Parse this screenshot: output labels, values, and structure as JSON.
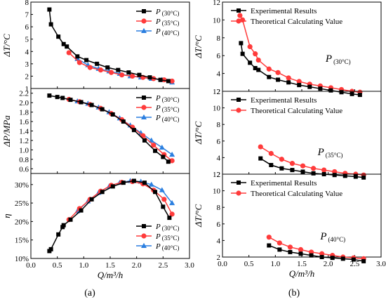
{
  "panel_labels": [
    "(a)",
    "(b)"
  ],
  "chart_data": [
    {
      "id": "a_dT",
      "type": "line",
      "ylabel": "ΔT/°C",
      "xlim": [
        0,
        3
      ],
      "ylim": [
        1,
        8
      ],
      "yticks": [
        "1",
        "2",
        "3",
        "4",
        "5",
        "6",
        "7",
        "8"
      ],
      "xticks": [],
      "legend": "top-right",
      "series": [
        {
          "name": "P",
          "sub": "(30°C)",
          "color": "#000000",
          "marker": "square",
          "x": [
            0.35,
            0.38,
            0.52,
            0.62,
            0.68,
            0.88,
            1.05,
            1.25,
            1.45,
            1.65,
            1.85,
            2.05,
            2.25,
            2.45,
            2.6
          ],
          "y": [
            7.4,
            6.2,
            5.2,
            4.6,
            4.4,
            3.6,
            3.3,
            3.0,
            2.7,
            2.5,
            2.3,
            2.1,
            1.9,
            1.7,
            1.6
          ]
        },
        {
          "name": "P",
          "sub": "(35°C)",
          "color": "#ff3b3b",
          "marker": "circle",
          "x": [
            0.72,
            0.92,
            1.12,
            1.32,
            1.52,
            1.72,
            1.92,
            2.12,
            2.32,
            2.52,
            2.67
          ],
          "y": [
            3.9,
            3.1,
            2.7,
            2.5,
            2.3,
            2.1,
            2.0,
            1.9,
            1.8,
            1.7,
            1.6
          ]
        },
        {
          "name": "P",
          "sub": "(40°C)",
          "color": "#2b7fe0",
          "marker": "triangle",
          "x": [
            0.88,
            1.08,
            1.28,
            1.48,
            1.68,
            1.88,
            2.08,
            2.28,
            2.48,
            2.67
          ],
          "y": [
            3.4,
            2.9,
            2.6,
            2.4,
            2.2,
            2.0,
            1.9,
            1.8,
            1.7,
            1.5
          ]
        }
      ]
    },
    {
      "id": "a_dP",
      "type": "line",
      "ylabel": "ΔP/MPa",
      "xlim": [
        0,
        3
      ],
      "ylim": [
        0.5,
        2.3
      ],
      "yticks": [
        "0.6",
        "0.8",
        "1.0",
        "1.2",
        "1.4",
        "1.6",
        "1.8",
        "2.0",
        "2.2"
      ],
      "xticks": [],
      "legend": "top-right",
      "series": [
        {
          "name": "P",
          "sub": "(30°C)",
          "color": "#000000",
          "marker": "square",
          "x": [
            0.35,
            0.5,
            0.6,
            0.75,
            0.95,
            1.15,
            1.35,
            1.55,
            1.75,
            1.95,
            2.15,
            2.35,
            2.5,
            2.6
          ],
          "y": [
            2.15,
            2.12,
            2.1,
            2.06,
            2.01,
            1.95,
            1.86,
            1.75,
            1.6,
            1.42,
            1.2,
            0.98,
            0.85,
            0.75
          ]
        },
        {
          "name": "P",
          "sub": "(35°C)",
          "color": "#ff3b3b",
          "marker": "circle",
          "x": [
            0.72,
            0.92,
            1.12,
            1.32,
            1.52,
            1.72,
            1.92,
            2.12,
            2.32,
            2.52,
            2.67
          ],
          "y": [
            2.07,
            2.02,
            1.96,
            1.88,
            1.77,
            1.64,
            1.48,
            1.3,
            1.1,
            0.9,
            0.77
          ]
        },
        {
          "name": "P",
          "sub": "(40°C)",
          "color": "#2b7fe0",
          "marker": "triangle",
          "x": [
            0.88,
            1.08,
            1.28,
            1.48,
            1.68,
            1.88,
            2.08,
            2.28,
            2.48,
            2.67
          ],
          "y": [
            2.03,
            1.98,
            1.9,
            1.8,
            1.67,
            1.52,
            1.36,
            1.2,
            1.05,
            0.9
          ]
        }
      ]
    },
    {
      "id": "a_eta",
      "type": "line",
      "ylabel": "η",
      "xlim": [
        0,
        3
      ],
      "ylim": [
        10,
        33
      ],
      "yticks": [
        "10%",
        "15%",
        "20%",
        "25%",
        "30%"
      ],
      "ytick_values": [
        10,
        15,
        20,
        25,
        30
      ],
      "xticks": [
        "0.0",
        "0.5",
        "1.0",
        "1.5",
        "2.0",
        "2.5",
        "3.0"
      ],
      "xlabel": "Q/m³/h",
      "legend": "bottom-right",
      "series": [
        {
          "name": "P",
          "sub": "(30°C)",
          "color": "#000000",
          "marker": "square",
          "x": [
            0.35,
            0.38,
            0.52,
            0.6,
            0.62,
            0.75,
            0.95,
            1.15,
            1.35,
            1.55,
            1.75,
            1.95,
            2.15,
            2.35,
            2.5,
            2.62
          ],
          "y": [
            12,
            12.5,
            16.5,
            18.5,
            19,
            20.5,
            23,
            26,
            28,
            29.5,
            30.5,
            31,
            30.5,
            28,
            24,
            21
          ]
        },
        {
          "name": "P",
          "sub": "(35°C)",
          "color": "#ff3b3b",
          "marker": "circle",
          "x": [
            0.72,
            0.92,
            1.12,
            1.32,
            1.52,
            1.72,
            1.92,
            2.12,
            2.32,
            2.52,
            2.67
          ],
          "y": [
            20.5,
            23.5,
            26,
            28.2,
            29.8,
            30.6,
            30.8,
            30.2,
            28.5,
            26,
            22
          ]
        },
        {
          "name": "P",
          "sub": "(40°C)",
          "color": "#2b7fe0",
          "marker": "triangle",
          "x": [
            0.88,
            1.08,
            1.28,
            1.48,
            1.68,
            1.88,
            2.08,
            2.28,
            2.48,
            2.67
          ],
          "y": [
            22.8,
            25.5,
            27.8,
            29.5,
            30.5,
            31,
            30.8,
            30,
            28.5,
            25
          ]
        }
      ]
    },
    {
      "id": "b_30",
      "type": "line",
      "ylabel": "ΔT/°C",
      "xlim": [
        0,
        3
      ],
      "ylim": [
        2,
        12
      ],
      "yticks": [
        "2",
        "4",
        "6",
        "8",
        "10",
        "12"
      ],
      "ytick_values": [
        2,
        4,
        6,
        8,
        10,
        12
      ],
      "xticks": [],
      "legend": "top-right",
      "annotation": {
        "text": "P",
        "sub": "(30°C)",
        "x": 1.95,
        "y": 5.3
      },
      "series": [
        {
          "name": "Experimental Results",
          "color": "#000000",
          "marker": "square",
          "x": [
            0.35,
            0.38,
            0.52,
            0.62,
            0.68,
            0.88,
            1.05,
            1.25,
            1.45,
            1.65,
            1.85,
            2.05,
            2.25,
            2.45,
            2.6
          ],
          "y": [
            7.4,
            6.2,
            5.2,
            4.6,
            4.4,
            3.6,
            3.3,
            3.0,
            2.7,
            2.5,
            2.3,
            2.1,
            1.9,
            1.7,
            1.6
          ]
        },
        {
          "name": "Theoretical Calculating Value",
          "color": "#ff3b3b",
          "marker": "circle",
          "x": [
            0.33,
            0.38,
            0.52,
            0.62,
            0.68,
            0.88,
            1.05,
            1.25,
            1.45,
            1.65,
            1.85,
            2.05,
            2.25,
            2.45,
            2.6
          ],
          "y": [
            10.5,
            10,
            7,
            6.2,
            5.5,
            4.5,
            4.1,
            3.5,
            3.1,
            2.8,
            2.6,
            2.4,
            2.2,
            2.0,
            1.9
          ]
        }
      ]
    },
    {
      "id": "b_35",
      "type": "line",
      "ylabel": "ΔT/°C",
      "xlim": [
        0,
        3
      ],
      "ylim": [
        2,
        12
      ],
      "yticks": [
        "2",
        "4",
        "6",
        "8",
        "10",
        "12"
      ],
      "ytick_values": [
        2,
        4,
        6,
        8,
        10,
        12
      ],
      "xticks": [],
      "legend": "top-right",
      "annotation": {
        "text": "P",
        "sub": "(35°C)",
        "x": 1.8,
        "y": 4.3
      },
      "series": [
        {
          "name": "Experimental Results",
          "color": "#000000",
          "marker": "square",
          "x": [
            0.72,
            0.92,
            1.12,
            1.32,
            1.52,
            1.72,
            1.92,
            2.12,
            2.32,
            2.52,
            2.67
          ],
          "y": [
            3.9,
            3.1,
            2.7,
            2.5,
            2.3,
            2.1,
            2.0,
            1.9,
            1.8,
            1.7,
            1.6
          ]
        },
        {
          "name": "Theoretical Calculating Value",
          "color": "#ff3b3b",
          "marker": "circle",
          "x": [
            0.72,
            0.92,
            1.12,
            1.32,
            1.52,
            1.72,
            1.92,
            2.12,
            2.32,
            2.52,
            2.67
          ],
          "y": [
            5.3,
            4.5,
            3.8,
            3.3,
            3.0,
            2.7,
            2.5,
            2.3,
            2.1,
            2.0,
            1.9
          ]
        }
      ]
    },
    {
      "id": "b_40",
      "type": "line",
      "ylabel": "ΔT/°C",
      "xlim": [
        0,
        3
      ],
      "ylim": [
        2,
        12
      ],
      "yticks": [
        "2",
        "4",
        "6",
        "8",
        "10",
        "12"
      ],
      "ytick_values": [
        2,
        4,
        6,
        8,
        10,
        12
      ],
      "xticks": [
        "0.0",
        "0.5",
        "1.0",
        "1.5",
        "2.0",
        "2.5",
        "3.0"
      ],
      "xlabel": "Q/m³/h",
      "legend": "top-right",
      "annotation": {
        "text": "P",
        "sub": "(40°C)",
        "x": 1.85,
        "y": 4.1
      },
      "series": [
        {
          "name": "Experimental Results",
          "color": "#000000",
          "marker": "square",
          "x": [
            0.88,
            1.08,
            1.28,
            1.48,
            1.68,
            1.88,
            2.08,
            2.28,
            2.48,
            2.67
          ],
          "y": [
            3.4,
            2.9,
            2.6,
            2.4,
            2.2,
            2.0,
            1.9,
            1.8,
            1.7,
            1.5
          ]
        },
        {
          "name": "Theoretical Calculating Value",
          "color": "#ff3b3b",
          "marker": "circle",
          "x": [
            0.88,
            1.08,
            1.28,
            1.48,
            1.68,
            1.88,
            2.08,
            2.28,
            2.48,
            2.67
          ],
          "y": [
            4.4,
            3.7,
            3.2,
            2.9,
            2.6,
            2.4,
            2.2,
            2.0,
            1.9,
            1.8
          ]
        }
      ]
    }
  ]
}
